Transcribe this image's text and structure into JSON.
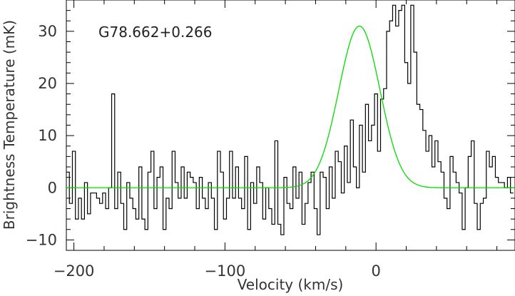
{
  "chart_data": {
    "type": "line",
    "title": "",
    "annotation": "G78.662+0.266",
    "xlabel": "Velocity (km/s)",
    "ylabel": "Brightness Temperature (mK)",
    "xlim": [
      -205,
      92
    ],
    "ylim": [
      -12,
      36
    ],
    "xticks": [
      -200,
      -100,
      0
    ],
    "yticks": [
      -10,
      0,
      10,
      20,
      30
    ],
    "grid": false,
    "series": [
      {
        "kind": "histogram-spectrum",
        "color": "#000000",
        "x": [
          -204,
          -202,
          -200,
          -198,
          -196,
          -194,
          -192,
          -190,
          -188,
          -186,
          -184,
          -182,
          -180,
          -178,
          -176,
          -174,
          -172,
          -170,
          -168,
          -166,
          -164,
          -162,
          -160,
          -158,
          -156,
          -154,
          -152,
          -150,
          -148,
          -146,
          -144,
          -142,
          -140,
          -138,
          -136,
          -134,
          -132,
          -130,
          -128,
          -126,
          -124,
          -122,
          -120,
          -118,
          -116,
          -114,
          -112,
          -110,
          -108,
          -106,
          -104,
          -102,
          -100,
          -98,
          -96,
          -94,
          -92,
          -90,
          -88,
          -86,
          -84,
          -82,
          -80,
          -78,
          -76,
          -74,
          -72,
          -70,
          -68,
          -66,
          -64,
          -62,
          -60,
          -58,
          -56,
          -54,
          -52,
          -50,
          -48,
          -46,
          -44,
          -42,
          -40,
          -38,
          -36,
          -34,
          -32,
          -30,
          -28,
          -26,
          -24,
          -22,
          -20,
          -18,
          -16,
          -14,
          -12,
          -10,
          -8,
          -6,
          -4,
          -2,
          0,
          2,
          4,
          6,
          8,
          10,
          12,
          14,
          16,
          18,
          20,
          22,
          24,
          26,
          28,
          30,
          32,
          34,
          36,
          38,
          40,
          42,
          44,
          46,
          48,
          50,
          52,
          54,
          56,
          58,
          60,
          62,
          64,
          66,
          68,
          70,
          72,
          74,
          76,
          78,
          80,
          82,
          84,
          86,
          88,
          90
        ],
        "y": [
          3,
          -3,
          7,
          -6,
          -2,
          -6,
          1,
          -5,
          -1,
          -1,
          -2,
          -3,
          -1,
          -4,
          0,
          18,
          -4,
          3,
          -3,
          -8,
          1,
          -2,
          -4,
          -6,
          4,
          -6,
          -8,
          3,
          7,
          -4,
          2,
          4,
          -8,
          -2,
          -4,
          7,
          1,
          -2,
          4,
          -2,
          3,
          2,
          1,
          -4,
          2,
          -2,
          -4,
          1,
          -2,
          -8,
          7,
          3,
          -6,
          -2,
          7,
          -2,
          4,
          -2,
          -4,
          6,
          -8,
          1,
          -3,
          4,
          1,
          -6,
          0,
          -4,
          -7,
          9,
          -7,
          -9,
          2,
          -3,
          -4,
          4,
          -2,
          3,
          -7,
          -3,
          1,
          3,
          -4,
          -9,
          3,
          2,
          -4,
          4,
          -2,
          7,
          5,
          -1,
          8,
          1,
          13,
          4,
          0,
          12,
          3,
          16,
          9,
          12,
          18,
          7,
          17,
          19,
          30,
          32,
          35,
          31,
          34,
          35,
          24,
          20,
          35,
          26,
          16,
          15,
          11,
          7,
          10,
          4,
          9,
          5,
          3,
          -2,
          -4,
          6,
          3,
          1,
          -1,
          -8,
          0,
          6,
          9,
          -3,
          -8,
          -3,
          -2,
          7,
          4,
          6,
          2,
          1,
          1,
          0,
          2,
          -1
        ],
        "note": "noisy step spectrum"
      },
      {
        "kind": "gaussian-fit",
        "color": "#00dd00",
        "amplitude": 31,
        "center": -11,
        "fwhm": 32,
        "baseline": 0
      }
    ]
  }
}
